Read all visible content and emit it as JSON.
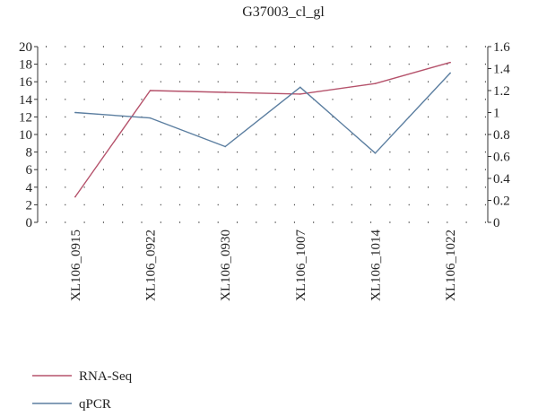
{
  "chart_data": {
    "type": "line",
    "title": "G37003_cl_gl",
    "categories": [
      "XL106_0915",
      "XL106_0922",
      "XL106_0930",
      "XL106_1007",
      "XL106_1014",
      "XL106_1022"
    ],
    "series": [
      {
        "name": "RNA-Seq",
        "axis": "left",
        "color": "#b5526b",
        "values": [
          2.9,
          15.0,
          14.8,
          14.6,
          15.8,
          18.2
        ]
      },
      {
        "name": "qPCR",
        "axis": "right",
        "color": "#5b7ea0",
        "values": [
          1.0,
          0.95,
          0.69,
          1.23,
          0.63,
          1.36
        ]
      }
    ],
    "y_left": {
      "min": 0,
      "max": 20,
      "ticks": [
        "0",
        "2",
        "4",
        "6",
        "8",
        "10",
        "12",
        "14",
        "16",
        "18",
        "20"
      ]
    },
    "y_right": {
      "min": 0,
      "max": 1.6,
      "ticks": [
        "0",
        "0.2",
        "0.4",
        "0.6",
        "0.8",
        "1",
        "1.2",
        "1.4",
        "1.6"
      ]
    },
    "grid": "dotted",
    "legend_position": "bottom-left"
  }
}
